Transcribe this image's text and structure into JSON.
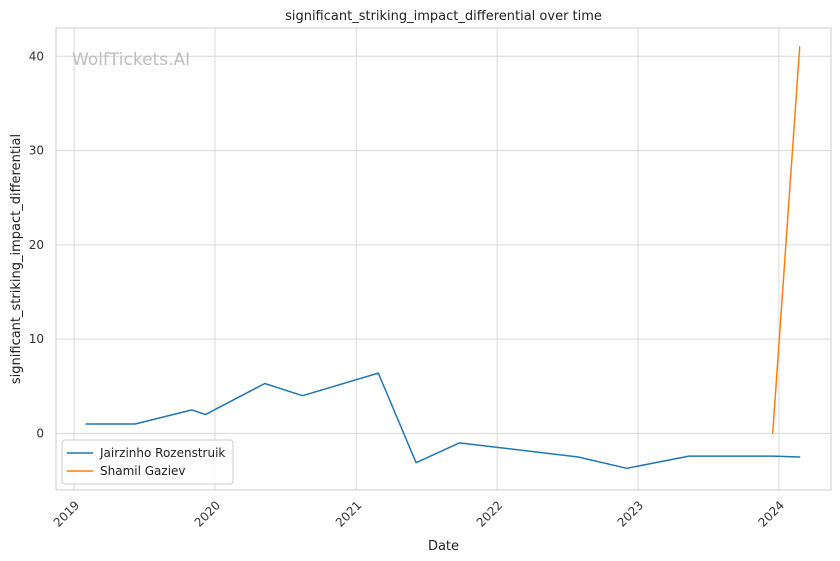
{
  "chart_data": {
    "type": "line",
    "title": "significant_striking_impact_differential over time",
    "xlabel": "Date",
    "ylabel": "significant_striking_impact_differential",
    "watermark": "WolfTickets.AI",
    "xlim": [
      "2018-11-15",
      "2024-05-15"
    ],
    "ylim": [
      -6,
      43
    ],
    "x_ticks": [
      "2019-01-01",
      "2020-01-01",
      "2021-01-01",
      "2022-01-01",
      "2023-01-01",
      "2024-01-01"
    ],
    "x_tick_labels": [
      "2019",
      "2020",
      "2021",
      "2022",
      "2023",
      "2024"
    ],
    "y_ticks": [
      0,
      10,
      20,
      30,
      40
    ],
    "y_tick_labels": [
      "0",
      "10",
      "20",
      "30",
      "40"
    ],
    "grid": true,
    "legend_position": "lower-left",
    "series": [
      {
        "name": "Jairzinho Rozenstruik",
        "color": "#1f77b4",
        "x": [
          "2019-02-01",
          "2019-06-08",
          "2019-11-02",
          "2019-12-07",
          "2020-05-09",
          "2020-08-15",
          "2021-02-27",
          "2021-06-05",
          "2021-09-25",
          "2022-07-30",
          "2022-12-03",
          "2023-05-13",
          "2023-12-16",
          "2024-02-24"
        ],
        "values": [
          1.0,
          1.0,
          2.5,
          2.0,
          5.3,
          4.0,
          6.4,
          -3.1,
          -1.0,
          -2.5,
          -3.7,
          -2.4,
          -2.4,
          -2.5
        ]
      },
      {
        "name": "Shamil Gaziev",
        "color": "#ff7f0e",
        "x": [
          "2023-12-16",
          "2024-02-24"
        ],
        "values": [
          0.0,
          41.0
        ]
      }
    ]
  }
}
